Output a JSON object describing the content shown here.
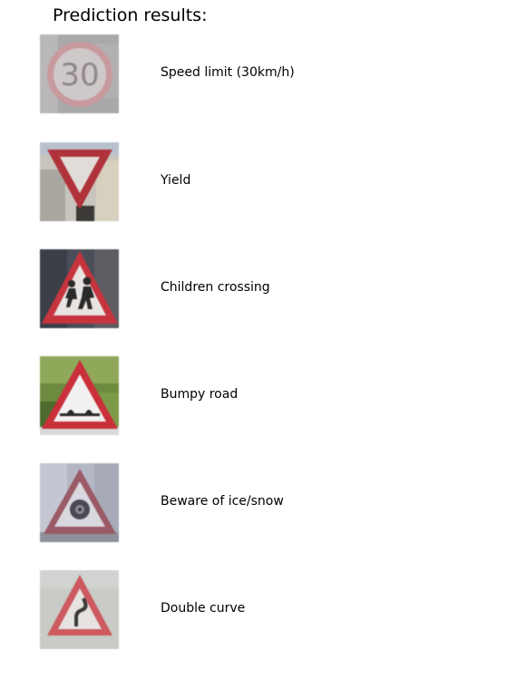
{
  "title": "Prediction results:",
  "predictions": [
    {
      "label": "Speed limit (30km/h)",
      "icon": "speed-limit-30-sign-icon",
      "sign_text": "30"
    },
    {
      "label": "Yield",
      "icon": "yield-sign-icon"
    },
    {
      "label": "Children crossing",
      "icon": "children-crossing-sign-icon"
    },
    {
      "label": "Bumpy road",
      "icon": "bumpy-road-sign-icon"
    },
    {
      "label": "Beware of ice/snow",
      "icon": "ice-snow-sign-icon"
    },
    {
      "label": "Double curve",
      "icon": "double-curve-sign-icon"
    }
  ],
  "colors": {
    "sign_red": "#c8303a",
    "sign_white": "#f4f4f4",
    "symbol_dark": "#2a2a2a"
  }
}
